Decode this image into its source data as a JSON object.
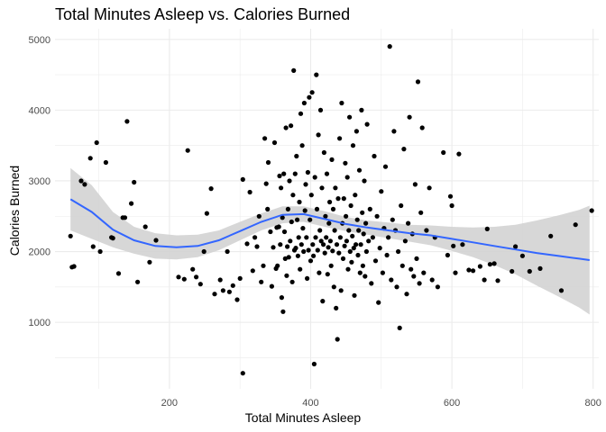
{
  "chart_data": {
    "type": "scatter",
    "title": "Total Minutes Asleep vs. Calories Burned",
    "xlabel": "Total Minutes Asleep",
    "ylabel": "Calories Burned",
    "xlim": [
      38,
      808
    ],
    "ylim": [
      60,
      5150
    ],
    "x_ticks": [
      200,
      400,
      600,
      800
    ],
    "y_ticks": [
      1000,
      2000,
      3000,
      4000,
      5000
    ],
    "grid": true,
    "colors": {
      "point": "#000000",
      "smooth_line": "#3366ff",
      "ribbon": "#d3d3d3",
      "grid": "#ebebeb"
    },
    "points": [
      [
        60,
        2220
      ],
      [
        62,
        1780
      ],
      [
        65,
        1790
      ],
      [
        75,
        3000
      ],
      [
        80,
        2950
      ],
      [
        88,
        3320
      ],
      [
        92,
        2070
      ],
      [
        97,
        3540
      ],
      [
        102,
        2000
      ],
      [
        110,
        3260
      ],
      [
        118,
        2200
      ],
      [
        120,
        2190
      ],
      [
        128,
        1690
      ],
      [
        134,
        2480
      ],
      [
        137,
        2480
      ],
      [
        140,
        3840
      ],
      [
        146,
        2680
      ],
      [
        150,
        2980
      ],
      [
        155,
        1570
      ],
      [
        166,
        2350
      ],
      [
        172,
        1850
      ],
      [
        181,
        2160
      ],
      [
        213,
        1640
      ],
      [
        221,
        1610
      ],
      [
        226,
        3430
      ],
      [
        233,
        1750
      ],
      [
        238,
        1640
      ],
      [
        244,
        1540
      ],
      [
        249,
        2000
      ],
      [
        253,
        2540
      ],
      [
        259,
        2890
      ],
      [
        264,
        1400
      ],
      [
        272,
        1600
      ],
      [
        276,
        1450
      ],
      [
        282,
        2000
      ],
      [
        285,
        1430
      ],
      [
        290,
        1520
      ],
      [
        296,
        1320
      ],
      [
        300,
        1620
      ],
      [
        304,
        280
      ],
      [
        304,
        3020
      ],
      [
        310,
        2110
      ],
      [
        314,
        2840
      ],
      [
        318,
        1730
      ],
      [
        321,
        2200
      ],
      [
        324,
        2070
      ],
      [
        327,
        2500
      ],
      [
        330,
        1570
      ],
      [
        333,
        1800
      ],
      [
        335,
        3600
      ],
      [
        337,
        2960
      ],
      [
        339,
        2600
      ],
      [
        340,
        3260
      ],
      [
        343,
        2280
      ],
      [
        345,
        1510
      ],
      [
        347,
        2060
      ],
      [
        349,
        3540
      ],
      [
        351,
        1760
      ],
      [
        352,
        2340
      ],
      [
        353,
        1800
      ],
      [
        355,
        2350
      ],
      [
        356,
        3070
      ],
      [
        357,
        2100
      ],
      [
        358,
        2900
      ],
      [
        359,
        1350
      ],
      [
        360,
        2480
      ],
      [
        361,
        1150
      ],
      [
        362,
        3100
      ],
      [
        363,
        2280
      ],
      [
        364,
        1900
      ],
      [
        365,
        3750
      ],
      [
        366,
        1660
      ],
      [
        367,
        2070
      ],
      [
        368,
        2600
      ],
      [
        369,
        1920
      ],
      [
        370,
        3000
      ],
      [
        371,
        2150
      ],
      [
        372,
        3780
      ],
      [
        373,
        2420
      ],
      [
        374,
        1570
      ],
      [
        375,
        2800
      ],
      [
        376,
        4560
      ],
      [
        377,
        2020
      ],
      [
        378,
        3100
      ],
      [
        379,
        2050
      ],
      [
        380,
        3350
      ],
      [
        381,
        2450
      ],
      [
        382,
        1940
      ],
      [
        383,
        2200
      ],
      [
        384,
        2700
      ],
      [
        385,
        1750
      ],
      [
        386,
        3950
      ],
      [
        387,
        2100
      ],
      [
        388,
        3500
      ],
      [
        389,
        2330
      ],
      [
        390,
        2000
      ],
      [
        391,
        4100
      ],
      [
        392,
        2580
      ],
      [
        393,
        2950
      ],
      [
        394,
        2200
      ],
      [
        395,
        1620
      ],
      [
        396,
        3120
      ],
      [
        397,
        2020
      ],
      [
        398,
        4180
      ],
      [
        399,
        2450
      ],
      [
        400,
        1870
      ],
      [
        401,
        2800
      ],
      [
        402,
        4250
      ],
      [
        403,
        2100
      ],
      [
        404,
        1940
      ],
      [
        405,
        410
      ],
      [
        406,
        3050
      ],
      [
        407,
        2200
      ],
      [
        408,
        4500
      ],
      [
        409,
        2600
      ],
      [
        410,
        2020
      ],
      [
        411,
        3650
      ],
      [
        412,
        1700
      ],
      [
        413,
        2300
      ],
      [
        414,
        4000
      ],
      [
        415,
        2150
      ],
      [
        416,
        2900
      ],
      [
        417,
        1300
      ],
      [
        418,
        2100
      ],
      [
        419,
        3400
      ],
      [
        420,
        1980
      ],
      [
        421,
        2500
      ],
      [
        422,
        2200
      ],
      [
        423,
        3100
      ],
      [
        424,
        1680
      ],
      [
        425,
        2060
      ],
      [
        426,
        2400
      ],
      [
        427,
        2700
      ],
      [
        428,
        2150
      ],
      [
        429,
        1800
      ],
      [
        430,
        3300
      ],
      [
        431,
        2010
      ],
      [
        432,
        2600
      ],
      [
        433,
        1500
      ],
      [
        434,
        2300
      ],
      [
        435,
        2900
      ],
      [
        436,
        1200
      ],
      [
        437,
        2100
      ],
      [
        438,
        760
      ],
      [
        439,
        2750
      ],
      [
        440,
        1980
      ],
      [
        441,
        3600
      ],
      [
        442,
        2200
      ],
      [
        443,
        1450
      ],
      [
        444,
        4100
      ],
      [
        445,
        2400
      ],
      [
        446,
        1900
      ],
      [
        447,
        2750
      ],
      [
        448,
        2080
      ],
      [
        449,
        3250
      ],
      [
        450,
        2500
      ],
      [
        451,
        2150
      ],
      [
        452,
        3050
      ],
      [
        453,
        1750
      ],
      [
        454,
        2300
      ],
      [
        455,
        3900
      ],
      [
        456,
        2000
      ],
      [
        457,
        2650
      ],
      [
        458,
        1850
      ],
      [
        459,
        2220
      ],
      [
        460,
        3500
      ],
      [
        461,
        2050
      ],
      [
        462,
        1380
      ],
      [
        463,
        2800
      ],
      [
        464,
        2100
      ],
      [
        465,
        3700
      ],
      [
        466,
        2450
      ],
      [
        467,
        1950
      ],
      [
        468,
        2300
      ],
      [
        469,
        3150
      ],
      [
        470,
        1700
      ],
      [
        471,
        2100
      ],
      [
        472,
        4000
      ],
      [
        473,
        2550
      ],
      [
        474,
        1800
      ],
      [
        475,
        2250
      ],
      [
        476,
        3000
      ],
      [
        477,
        1650
      ],
      [
        478,
        2400
      ],
      [
        479,
        2000
      ],
      [
        480,
        3800
      ],
      [
        482,
        2150
      ],
      [
        484,
        2600
      ],
      [
        486,
        1550
      ],
      [
        488,
        2200
      ],
      [
        490,
        3350
      ],
      [
        492,
        1870
      ],
      [
        494,
        2500
      ],
      [
        496,
        1280
      ],
      [
        498,
        2050
      ],
      [
        500,
        2850
      ],
      [
        502,
        1700
      ],
      [
        504,
        2330
      ],
      [
        506,
        3200
      ],
      [
        508,
        1950
      ],
      [
        510,
        2200
      ],
      [
        512,
        4900
      ],
      [
        514,
        1600
      ],
      [
        516,
        2450
      ],
      [
        518,
        3700
      ],
      [
        520,
        2300
      ],
      [
        522,
        1500
      ],
      [
        524,
        2000
      ],
      [
        526,
        920
      ],
      [
        528,
        2650
      ],
      [
        530,
        1800
      ],
      [
        532,
        3450
      ],
      [
        534,
        2150
      ],
      [
        536,
        1400
      ],
      [
        538,
        2400
      ],
      [
        540,
        3900
      ],
      [
        542,
        1750
      ],
      [
        544,
        2250
      ],
      [
        546,
        1650
      ],
      [
        548,
        2950
      ],
      [
        550,
        1900
      ],
      [
        552,
        4400
      ],
      [
        554,
        1550
      ],
      [
        556,
        2550
      ],
      [
        558,
        3750
      ],
      [
        560,
        1700
      ],
      [
        564,
        2300
      ],
      [
        568,
        2900
      ],
      [
        572,
        1600
      ],
      [
        576,
        2200
      ],
      [
        580,
        1500
      ],
      [
        588,
        3400
      ],
      [
        594,
        1950
      ],
      [
        598,
        2780
      ],
      [
        600,
        2650
      ],
      [
        602,
        2080
      ],
      [
        605,
        1700
      ],
      [
        610,
        3380
      ],
      [
        615,
        2100
      ],
      [
        624,
        1740
      ],
      [
        630,
        1730
      ],
      [
        640,
        1790
      ],
      [
        646,
        1600
      ],
      [
        650,
        2320
      ],
      [
        654,
        1820
      ],
      [
        660,
        1830
      ],
      [
        665,
        1590
      ],
      [
        685,
        1720
      ],
      [
        690,
        2070
      ],
      [
        700,
        1940
      ],
      [
        710,
        1720
      ],
      [
        725,
        1760
      ],
      [
        740,
        2220
      ],
      [
        755,
        1450
      ],
      [
        775,
        2380
      ],
      [
        798,
        2580
      ]
    ],
    "smooth": [
      [
        60,
        2740
      ],
      [
        90,
        2560
      ],
      [
        120,
        2310
      ],
      [
        150,
        2160
      ],
      [
        180,
        2080
      ],
      [
        210,
        2060
      ],
      [
        240,
        2080
      ],
      [
        270,
        2160
      ],
      [
        300,
        2290
      ],
      [
        330,
        2420
      ],
      [
        360,
        2520
      ],
      [
        390,
        2530
      ],
      [
        420,
        2460
      ],
      [
        450,
        2390
      ],
      [
        480,
        2340
      ],
      [
        510,
        2300
      ],
      [
        540,
        2260
      ],
      [
        570,
        2230
      ],
      [
        600,
        2180
      ],
      [
        630,
        2130
      ],
      [
        660,
        2080
      ],
      [
        690,
        2030
      ],
      [
        720,
        1980
      ],
      [
        750,
        1940
      ],
      [
        780,
        1900
      ],
      [
        795,
        1880
      ]
    ],
    "ribbon_upper": [
      [
        60,
        3180
      ],
      [
        90,
        2940
      ],
      [
        120,
        2560
      ],
      [
        150,
        2350
      ],
      [
        180,
        2260
      ],
      [
        210,
        2230
      ],
      [
        240,
        2240
      ],
      [
        270,
        2300
      ],
      [
        300,
        2420
      ],
      [
        330,
        2540
      ],
      [
        360,
        2640
      ],
      [
        390,
        2640
      ],
      [
        420,
        2570
      ],
      [
        450,
        2490
      ],
      [
        480,
        2440
      ],
      [
        510,
        2410
      ],
      [
        540,
        2380
      ],
      [
        570,
        2370
      ],
      [
        600,
        2350
      ],
      [
        630,
        2340
      ],
      [
        660,
        2350
      ],
      [
        690,
        2380
      ],
      [
        720,
        2440
      ],
      [
        750,
        2510
      ],
      [
        780,
        2590
      ],
      [
        795,
        2650
      ]
    ],
    "ribbon_lower": [
      [
        60,
        2300
      ],
      [
        90,
        2180
      ],
      [
        120,
        2060
      ],
      [
        150,
        1970
      ],
      [
        180,
        1900
      ],
      [
        210,
        1890
      ],
      [
        240,
        1920
      ],
      [
        270,
        2020
      ],
      [
        300,
        2160
      ],
      [
        330,
        2300
      ],
      [
        360,
        2400
      ],
      [
        390,
        2420
      ],
      [
        420,
        2350
      ],
      [
        450,
        2290
      ],
      [
        480,
        2240
      ],
      [
        510,
        2190
      ],
      [
        540,
        2140
      ],
      [
        570,
        2090
      ],
      [
        600,
        2010
      ],
      [
        630,
        1920
      ],
      [
        660,
        1810
      ],
      [
        690,
        1680
      ],
      [
        720,
        1520
      ],
      [
        750,
        1370
      ],
      [
        780,
        1210
      ],
      [
        795,
        1110
      ]
    ]
  }
}
